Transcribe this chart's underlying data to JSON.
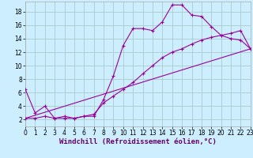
{
  "xlabel": "Windchill (Refroidissement éolien,°C)",
  "background_color": "#cceeff",
  "grid_color": "#aacccc",
  "line_color": "#990099",
  "xlim": [
    0,
    23
  ],
  "ylim": [
    1,
    19.5
  ],
  "xticks": [
    0,
    1,
    2,
    3,
    4,
    5,
    6,
    7,
    8,
    9,
    10,
    11,
    12,
    13,
    14,
    15,
    16,
    17,
    18,
    19,
    20,
    21,
    22,
    23
  ],
  "yticks": [
    2,
    4,
    6,
    8,
    10,
    12,
    14,
    16,
    18
  ],
  "line1_x": [
    0,
    1,
    2,
    3,
    4,
    5,
    6,
    7,
    8,
    9,
    10,
    11,
    12,
    13,
    14,
    15,
    16,
    17,
    18,
    19,
    20,
    21,
    22,
    23
  ],
  "line1_y": [
    6.5,
    3.0,
    4.0,
    2.2,
    2.2,
    2.2,
    2.5,
    2.5,
    5.0,
    8.5,
    13.0,
    15.5,
    15.5,
    15.2,
    16.5,
    19.0,
    19.0,
    17.5,
    17.3,
    15.8,
    14.5,
    14.0,
    13.8,
    12.5
  ],
  "line2_x": [
    0,
    1,
    2,
    3,
    4,
    5,
    6,
    7,
    8,
    9,
    10,
    11,
    12,
    13,
    14,
    15,
    16,
    17,
    18,
    19,
    20,
    21,
    22,
    23
  ],
  "line2_y": [
    2.2,
    2.2,
    2.5,
    2.2,
    2.5,
    2.2,
    2.5,
    2.8,
    4.5,
    5.5,
    6.5,
    7.5,
    8.8,
    10.0,
    11.2,
    12.0,
    12.5,
    13.2,
    13.8,
    14.2,
    14.5,
    14.8,
    15.2,
    12.5
  ],
  "line3_x": [
    0,
    23
  ],
  "line3_y": [
    2.2,
    12.5
  ],
  "fontsize_ticks": 5.5,
  "fontsize_label": 6.5
}
